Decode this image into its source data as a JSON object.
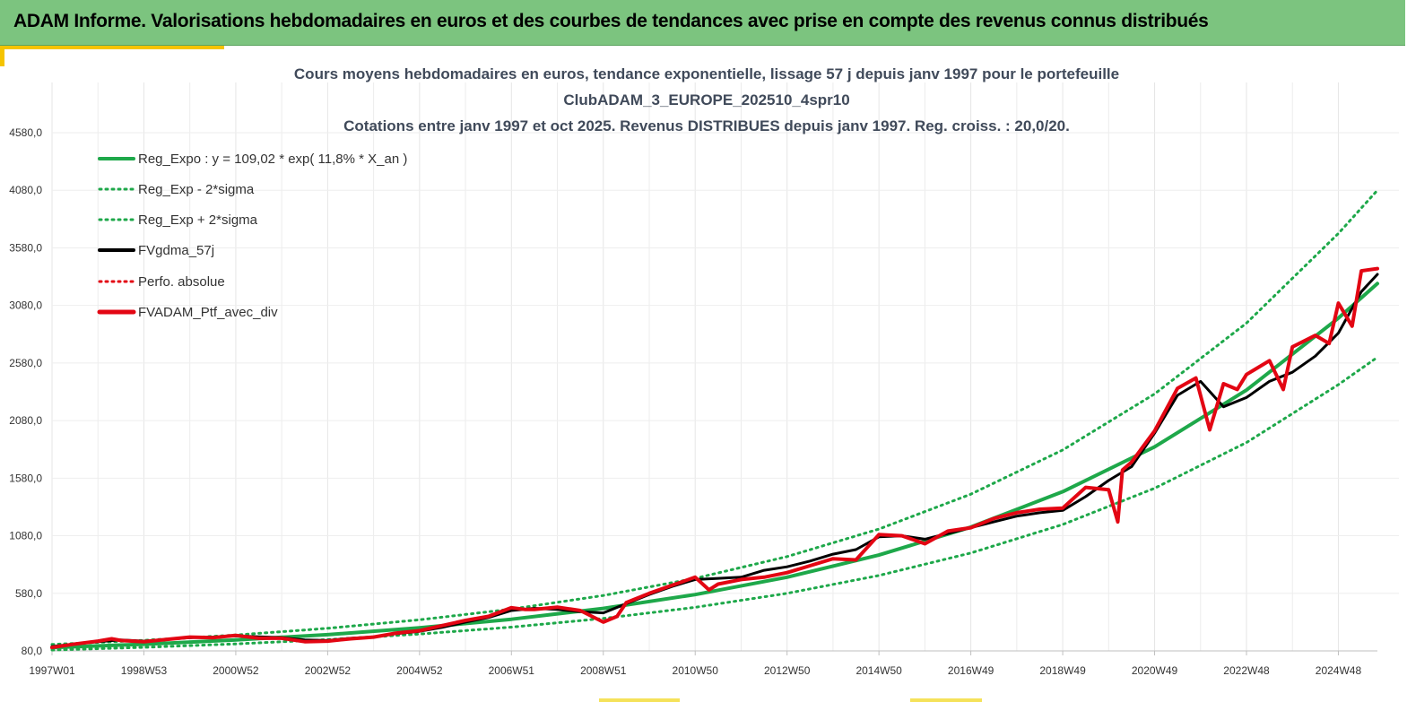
{
  "banner": {
    "title": "ADAM Informe. Valorisations hebdomadaires en euros et des courbes de tendances avec prise en compte des revenus connus distribués"
  },
  "colors": {
    "banner_bg": "#7cc47f",
    "accent": "#f5c400",
    "trend": "#1ea84a",
    "band": "#1ea84a",
    "smoothed": "#000000",
    "portfolio": "#e30613"
  },
  "chart_data": {
    "type": "line",
    "title_lines": [
      "Cours moyens hebdomadaires  en euros, tendance exponentielle, lissage 57 j depuis janv 1997 pour le portefeuille",
      "ClubADAM_3_EUROPE_202510_4spr10",
      "Cotations  entre janv 1997 et oct 2025. Revenus DISTRIBUES depuis janv 1997. Reg. croiss. : 20,0/20."
    ],
    "y_ticks": [
      "80,0",
      "580,0",
      "1080,0",
      "1580,0",
      "2080,0",
      "2580,0",
      "3080,0",
      "3580,0",
      "4080,0",
      "4580,0"
    ],
    "ylim": [
      80,
      4580
    ],
    "x_ticks": [
      "1997W01",
      "1998W53",
      "2000W52",
      "2002W52",
      "2004W52",
      "2006W51",
      "2008W51",
      "2010W50",
      "2012W50",
      "2014W50",
      "2016W49",
      "2018W49",
      "2020W49",
      "2022W48",
      "2024W48"
    ],
    "x_tick_years": [
      1997.0,
      1999.0,
      2001.0,
      2003.0,
      2005.0,
      2007.0,
      2009.0,
      2011.0,
      2013.0,
      2015.0,
      2017.0,
      2019.0,
      2021.0,
      2023.0,
      2025.0
    ],
    "xlim": [
      1997.0,
      2025.85
    ],
    "grid": "vertical",
    "legend_position": "top-left",
    "legend": [
      "Reg_Expo : y = 109,02 * exp( 11,8% *  X_an )",
      "Reg_Exp - 2*sigma",
      "Reg_Exp + 2*sigma",
      "FVgdma_57j",
      "Perfo. absolue",
      "FVADAM_Ptf_avec_div"
    ],
    "series": [
      {
        "name": "Reg_Expo : y = 109,02 * exp( 11,8% *  X_an )",
        "style": "solid",
        "x": [
          1997.0,
          1999.0,
          2001.0,
          2003.0,
          2005.0,
          2007.0,
          2009.0,
          2011.0,
          2013.0,
          2015.0,
          2017.0,
          2019.0,
          2021.0,
          2023.0,
          2025.0,
          2025.85
        ],
        "y": [
          109,
          138,
          175,
          221,
          280,
          355,
          449,
          569,
          720,
          912,
          1155,
          1463,
          1852,
          2345,
          2970,
          3270
        ]
      },
      {
        "name": "Reg_Exp - 2*sigma",
        "style": "dotted",
        "x": [
          1997.0,
          1999.0,
          2001.0,
          2003.0,
          2005.0,
          2007.0,
          2009.0,
          2011.0,
          2013.0,
          2015.0,
          2017.0,
          2019.0,
          2021.0,
          2023.0,
          2025.0,
          2025.85
        ],
        "y": [
          88,
          111,
          141,
          178,
          226,
          286,
          362,
          458,
          580,
          735,
          930,
          1178,
          1492,
          1889,
          2392,
          2630
        ]
      },
      {
        "name": "Reg_Exp + 2*sigma",
        "style": "dotted",
        "x": [
          1997.0,
          1999.0,
          2001.0,
          2003.0,
          2005.0,
          2007.0,
          2009.0,
          2011.0,
          2013.0,
          2015.0,
          2017.0,
          2019.0,
          2021.0,
          2023.0,
          2025.0,
          2025.85
        ],
        "y": [
          136,
          172,
          218,
          276,
          350,
          443,
          561,
          710,
          899,
          1138,
          1441,
          1825,
          2311,
          2926,
          3705,
          4080
        ]
      },
      {
        "name": "FVgdma_57j",
        "style": "solid",
        "x": [
          1997.0,
          1997.5,
          1998.0,
          1998.5,
          1999.0,
          2000.0,
          2000.5,
          2001.0,
          2002.0,
          2002.5,
          2003.0,
          2003.5,
          2004.0,
          2004.5,
          2005.0,
          2005.5,
          2006.0,
          2006.5,
          2007.0,
          2007.5,
          2008.0,
          2008.5,
          2009.0,
          2009.5,
          2010.0,
          2010.5,
          2011.0,
          2011.5,
          2012.0,
          2012.5,
          2013.0,
          2013.5,
          2014.0,
          2014.5,
          2015.0,
          2015.5,
          2016.0,
          2016.5,
          2017.0,
          2017.5,
          2018.0,
          2018.5,
          2019.0,
          2019.5,
          2020.0,
          2020.5,
          2021.0,
          2021.5,
          2022.0,
          2022.5,
          2023.0,
          2023.5,
          2024.0,
          2024.5,
          2025.0,
          2025.5,
          2025.85
        ],
        "y": [
          118,
          140,
          160,
          175,
          165,
          195,
          200,
          210,
          195,
          175,
          170,
          190,
          200,
          230,
          250,
          285,
          330,
          370,
          430,
          450,
          440,
          420,
          410,
          490,
          570,
          640,
          700,
          710,
          720,
          780,
          810,
          860,
          920,
          960,
          1070,
          1080,
          1050,
          1100,
          1150,
          1200,
          1250,
          1280,
          1300,
          1420,
          1560,
          1680,
          1970,
          2300,
          2420,
          2200,
          2280,
          2420,
          2500,
          2640,
          2840,
          3200,
          3350
        ]
      },
      {
        "name": "FVADAM_Ptf_avec_div",
        "style": "solid",
        "x": [
          1997.0,
          1997.5,
          1998.0,
          1998.3,
          1998.5,
          1999.0,
          2000.0,
          2000.5,
          2001.0,
          2001.5,
          2002.0,
          2002.5,
          2003.0,
          2003.5,
          2004.0,
          2004.5,
          2005.0,
          2005.5,
          2006.0,
          2006.5,
          2007.0,
          2007.3,
          2007.5,
          2008.0,
          2008.5,
          2009.0,
          2009.3,
          2009.5,
          2010.0,
          2010.5,
          2011.0,
          2011.3,
          2011.5,
          2012.0,
          2012.5,
          2013.0,
          2013.5,
          2014.0,
          2014.5,
          2015.0,
          2015.5,
          2016.0,
          2016.5,
          2017.0,
          2017.5,
          2018.0,
          2018.5,
          2019.0,
          2019.5,
          2020.0,
          2020.2,
          2020.3,
          2020.5,
          2021.0,
          2021.5,
          2021.9,
          2022.2,
          2022.5,
          2022.8,
          2023.0,
          2023.5,
          2023.8,
          2024.0,
          2024.5,
          2024.8,
          2025.0,
          2025.3,
          2025.5,
          2025.85
        ],
        "y": [
          110,
          140,
          165,
          185,
          170,
          160,
          200,
          195,
          215,
          190,
          190,
          160,
          165,
          185,
          200,
          235,
          255,
          300,
          345,
          380,
          455,
          440,
          440,
          460,
          430,
          330,
          380,
          500,
          580,
          650,
          720,
          610,
          660,
          700,
          720,
          760,
          820,
          880,
          870,
          1090,
          1080,
          1010,
          1120,
          1150,
          1230,
          1280,
          1310,
          1320,
          1500,
          1480,
          1200,
          1650,
          1720,
          1990,
          2360,
          2450,
          2000,
          2400,
          2350,
          2480,
          2600,
          2350,
          2720,
          2820,
          2750,
          3100,
          2900,
          3380,
          3400
        ]
      }
    ]
  }
}
